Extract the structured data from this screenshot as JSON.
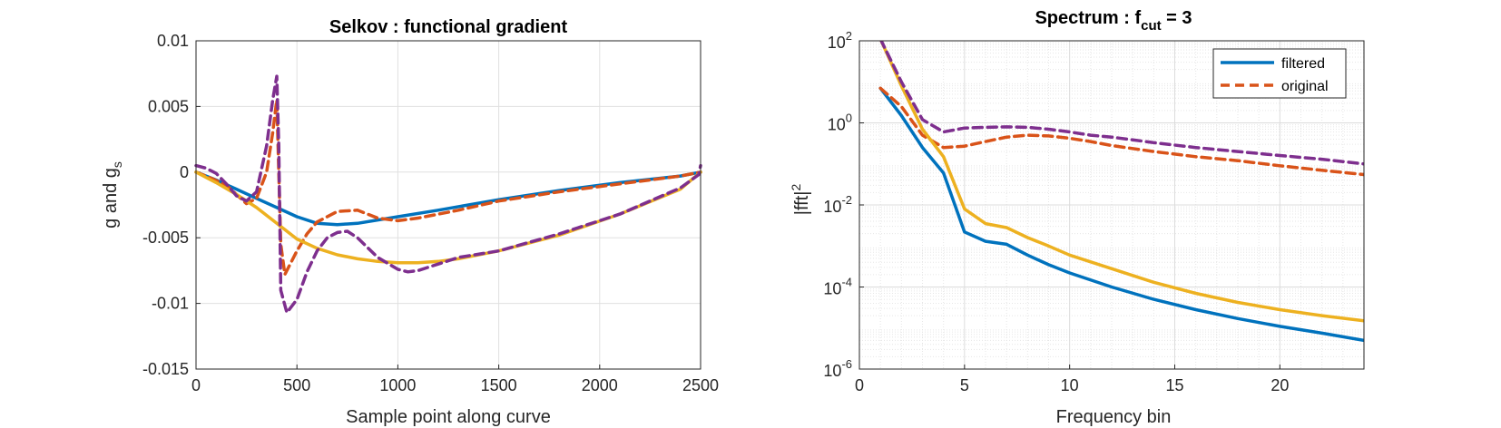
{
  "chart_data": [
    {
      "type": "line",
      "title": "Selkov : functional gradient",
      "xlabel": "Sample point along curve",
      "ylabel": {
        "base": "g and g",
        "sub": "s"
      },
      "xlim": [
        0,
        2500
      ],
      "ylim": [
        -0.015,
        0.01
      ],
      "xticks": [
        0,
        500,
        1000,
        1500,
        2000,
        2500
      ],
      "yticks": [
        -0.015,
        -0.01,
        -0.005,
        0,
        0.005,
        0.01
      ],
      "ytick_labels": [
        "-0.015",
        "-0.01",
        "-0.005",
        "0",
        "0.005",
        "0.01"
      ],
      "grid": true,
      "series": [
        {
          "color": "#0072BD",
          "style": "solid",
          "x": [
            0,
            100,
            200,
            300,
            400,
            500,
            600,
            700,
            800,
            1000,
            1200,
            1500,
            1800,
            2100,
            2400,
            2500
          ],
          "y": [
            0,
            -0.0006,
            -0.0013,
            -0.002,
            -0.0027,
            -0.0034,
            -0.0039,
            -0.004,
            -0.0039,
            -0.0034,
            -0.0029,
            -0.0021,
            -0.0014,
            -0.0008,
            -0.0003,
            0
          ]
        },
        {
          "color": "#D95319",
          "style": "dashed",
          "x": [
            0,
            80,
            150,
            200,
            250,
            300,
            350,
            380,
            400,
            420,
            440,
            500,
            550,
            600,
            700,
            800,
            900,
            1000,
            1100,
            1300,
            1500,
            1800,
            2100,
            2400,
            2500
          ],
          "y": [
            0,
            -0.0005,
            -0.001,
            -0.0017,
            -0.0024,
            -0.002,
            0,
            0.003,
            0.0055,
            -0.0055,
            -0.0078,
            -0.006,
            -0.0047,
            -0.0038,
            -0.003,
            -0.0029,
            -0.0035,
            -0.0037,
            -0.0035,
            -0.0029,
            -0.0022,
            -0.0015,
            -0.0009,
            -0.0003,
            0
          ]
        },
        {
          "color": "#EDB120",
          "style": "solid",
          "x": [
            0,
            100,
            200,
            300,
            400,
            500,
            600,
            700,
            800,
            900,
            1000,
            1100,
            1200,
            1300,
            1500,
            1800,
            2100,
            2400,
            2500
          ],
          "y": [
            0,
            -0.0008,
            -0.0017,
            -0.0027,
            -0.0039,
            -0.0051,
            -0.0058,
            -0.0063,
            -0.0066,
            -0.0068,
            -0.0069,
            -0.0069,
            -0.0068,
            -0.0066,
            -0.006,
            -0.0048,
            -0.0032,
            -0.0013,
            0
          ]
        },
        {
          "color": "#7E2F8E",
          "style": "dashed",
          "x": [
            0,
            50,
            100,
            150,
            200,
            250,
            300,
            350,
            380,
            400,
            410,
            420,
            450,
            500,
            550,
            600,
            650,
            700,
            750,
            800,
            900,
            1000,
            1050,
            1100,
            1200,
            1300,
            1500,
            1800,
            2100,
            2400,
            2490,
            2500
          ],
          "y": [
            0.0005,
            0.0003,
            -0.0001,
            -0.0009,
            -0.0018,
            -0.0022,
            -0.0015,
            0.002,
            0.0055,
            0.0073,
            0.002,
            -0.009,
            -0.0107,
            -0.0097,
            -0.0076,
            -0.006,
            -0.005,
            -0.0046,
            -0.0045,
            -0.005,
            -0.0065,
            -0.0074,
            -0.0076,
            -0.0075,
            -0.007,
            -0.0065,
            -0.006,
            -0.0047,
            -0.0032,
            -0.0012,
            -0.0002,
            0.0005
          ]
        }
      ]
    },
    {
      "type": "line",
      "title": {
        "base": "Spectrum : f",
        "sub": "cut",
        "after": " = 3"
      },
      "xlabel": "Frequency bin",
      "ylabel": {
        "base": "|fft|",
        "sup": "2"
      },
      "xlim": [
        0,
        24
      ],
      "ylim": [
        1e-06,
        100
      ],
      "yscale": "log",
      "xticks": [
        0,
        5,
        10,
        15,
        20
      ],
      "yticks": [
        {
          "base": "10",
          "exp": "-6",
          "value": 1e-06
        },
        {
          "base": "10",
          "exp": "-4",
          "value": 0.0001
        },
        {
          "base": "10",
          "exp": "-2",
          "value": 0.01
        },
        {
          "base": "10",
          "exp": "0",
          "value": 1
        },
        {
          "base": "10",
          "exp": "2",
          "value": 100
        }
      ],
      "grid": true,
      "minor_grid": true,
      "legend_position": "top-right",
      "legend": [
        {
          "label": "filtered",
          "color": "#0072BD",
          "style": "solid"
        },
        {
          "label": "original",
          "color": "#D95319",
          "style": "dashed"
        }
      ],
      "series": [
        {
          "name": "filtered",
          "color": "#0072BD",
          "style": "solid",
          "x": [
            1,
            2,
            3,
            4,
            5,
            6,
            7,
            8,
            9,
            10,
            12,
            14,
            16,
            18,
            20,
            22,
            24
          ],
          "y": [
            7,
            1.5,
            0.25,
            0.06,
            0.0022,
            0.0013,
            0.0011,
            0.0006,
            0.00035,
            0.00022,
            0.0001,
            5e-05,
            2.8e-05,
            1.7e-05,
            1.1e-05,
            7.5e-06,
            5e-06
          ]
        },
        {
          "name": "original",
          "color": "#D95319",
          "style": "dashed",
          "x": [
            1,
            2,
            3,
            4,
            5,
            6,
            7,
            8,
            9,
            10,
            11,
            12,
            14,
            16,
            18,
            20,
            22,
            24
          ],
          "y": [
            7,
            2.5,
            0.5,
            0.25,
            0.27,
            0.35,
            0.45,
            0.5,
            0.48,
            0.42,
            0.35,
            0.28,
            0.2,
            0.15,
            0.12,
            0.09,
            0.07,
            0.055
          ]
        },
        {
          "color": "#EDB120",
          "style": "solid",
          "x": [
            1,
            2,
            3,
            4,
            5,
            6,
            7,
            8,
            9,
            10,
            12,
            14,
            16,
            18,
            20,
            22,
            24
          ],
          "y": [
            110,
            8,
            0.7,
            0.15,
            0.008,
            0.0035,
            0.0028,
            0.0016,
            0.001,
            0.0006,
            0.00028,
            0.00013,
            7e-05,
            4.2e-05,
            2.8e-05,
            2e-05,
            1.5e-05
          ]
        },
        {
          "color": "#7E2F8E",
          "style": "dashed",
          "x": [
            1,
            2,
            3,
            4,
            5,
            6,
            7,
            8,
            9,
            10,
            11,
            12,
            14,
            16,
            18,
            20,
            22,
            24
          ],
          "y": [
            110,
            10,
            1.2,
            0.6,
            0.75,
            0.78,
            0.8,
            0.78,
            0.7,
            0.6,
            0.5,
            0.45,
            0.33,
            0.25,
            0.2,
            0.16,
            0.13,
            0.1
          ]
        }
      ]
    }
  ]
}
